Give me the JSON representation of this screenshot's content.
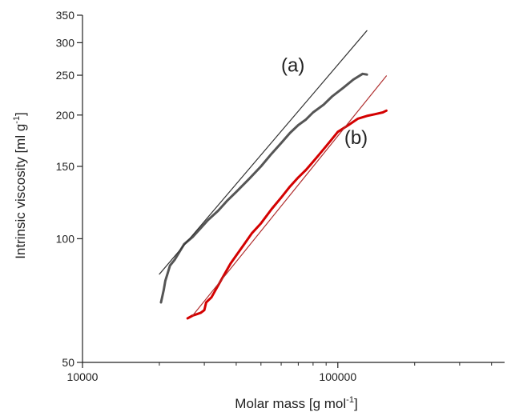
{
  "chart_data": {
    "type": "line",
    "x_scale": "log",
    "y_scale": "log",
    "xlabel": {
      "main": "Molar mass [g mol",
      "sup": "-1",
      "close": "]"
    },
    "ylabel": {
      "main": "Intrinsic viscosity [ml g",
      "sup": "-1",
      "close": "]"
    },
    "xlim": [
      10000,
      450000
    ],
    "ylim": [
      50,
      350
    ],
    "x_ticks": [
      {
        "value": 10000,
        "label": "10000"
      },
      {
        "value": 100000,
        "label": "100000"
      }
    ],
    "x_minor_ticks": [
      20000,
      30000,
      40000,
      50000,
      60000,
      70000,
      80000,
      90000,
      200000,
      300000,
      400000
    ],
    "y_ticks": [
      {
        "value": 50,
        "label": "50"
      },
      {
        "value": 100,
        "label": "100"
      },
      {
        "value": 150,
        "label": "150"
      },
      {
        "value": 200,
        "label": "200"
      },
      {
        "value": 250,
        "label": "250"
      },
      {
        "value": 300,
        "label": "300"
      },
      {
        "value": 350,
        "label": "350"
      }
    ],
    "grid": false,
    "series": [
      {
        "color": "#555555",
        "style": "measured",
        "x": [
          20300,
          20500,
          20800,
          21100,
          21500,
          22000,
          23000,
          24000,
          25000,
          27000,
          29000,
          31000,
          34000,
          37000,
          40000,
          45000,
          50000,
          55000,
          60000,
          65000,
          70000,
          75000,
          80000,
          88000,
          95000,
          105000,
          115000,
          125000,
          130000
        ],
        "y": [
          70,
          72,
          75,
          79,
          82,
          86,
          89,
          93,
          97,
          101,
          106,
          111,
          117,
          124,
          130,
          140,
          150,
          161,
          171,
          181,
          189,
          195,
          203,
          212,
          222,
          233,
          244,
          252,
          251
        ]
      },
      {
        "color": "#333333",
        "style": "fit",
        "x": [
          20000,
          130000
        ],
        "y": [
          82,
          321
        ]
      },
      {
        "color": "#d40000",
        "style": "measured",
        "x": [
          25800,
          27000,
          28000,
          29000,
          30000,
          30500,
          32000,
          34000,
          36000,
          38000,
          40000,
          43000,
          46000,
          50000,
          55000,
          60000,
          65000,
          70000,
          75000,
          80000,
          85000,
          90000,
          95000,
          100000,
          110000,
          120000,
          130000,
          140000,
          150000,
          155000
        ],
        "y": [
          64,
          65,
          65.5,
          66,
          67,
          70,
          72,
          77,
          82,
          87,
          91,
          97,
          103,
          109,
          118,
          126,
          134,
          141,
          147,
          154,
          161,
          168,
          175,
          182,
          189,
          196,
          199,
          201,
          203,
          205
        ]
      },
      {
        "color": "#b03030",
        "style": "fit",
        "x": [
          27000,
          155000
        ],
        "y": [
          65,
          249
        ]
      }
    ],
    "annotations": [
      {
        "text": "(a)",
        "x": 60000,
        "y": 255
      },
      {
        "text": "(b)",
        "x": 106000,
        "y": 170
      }
    ]
  }
}
